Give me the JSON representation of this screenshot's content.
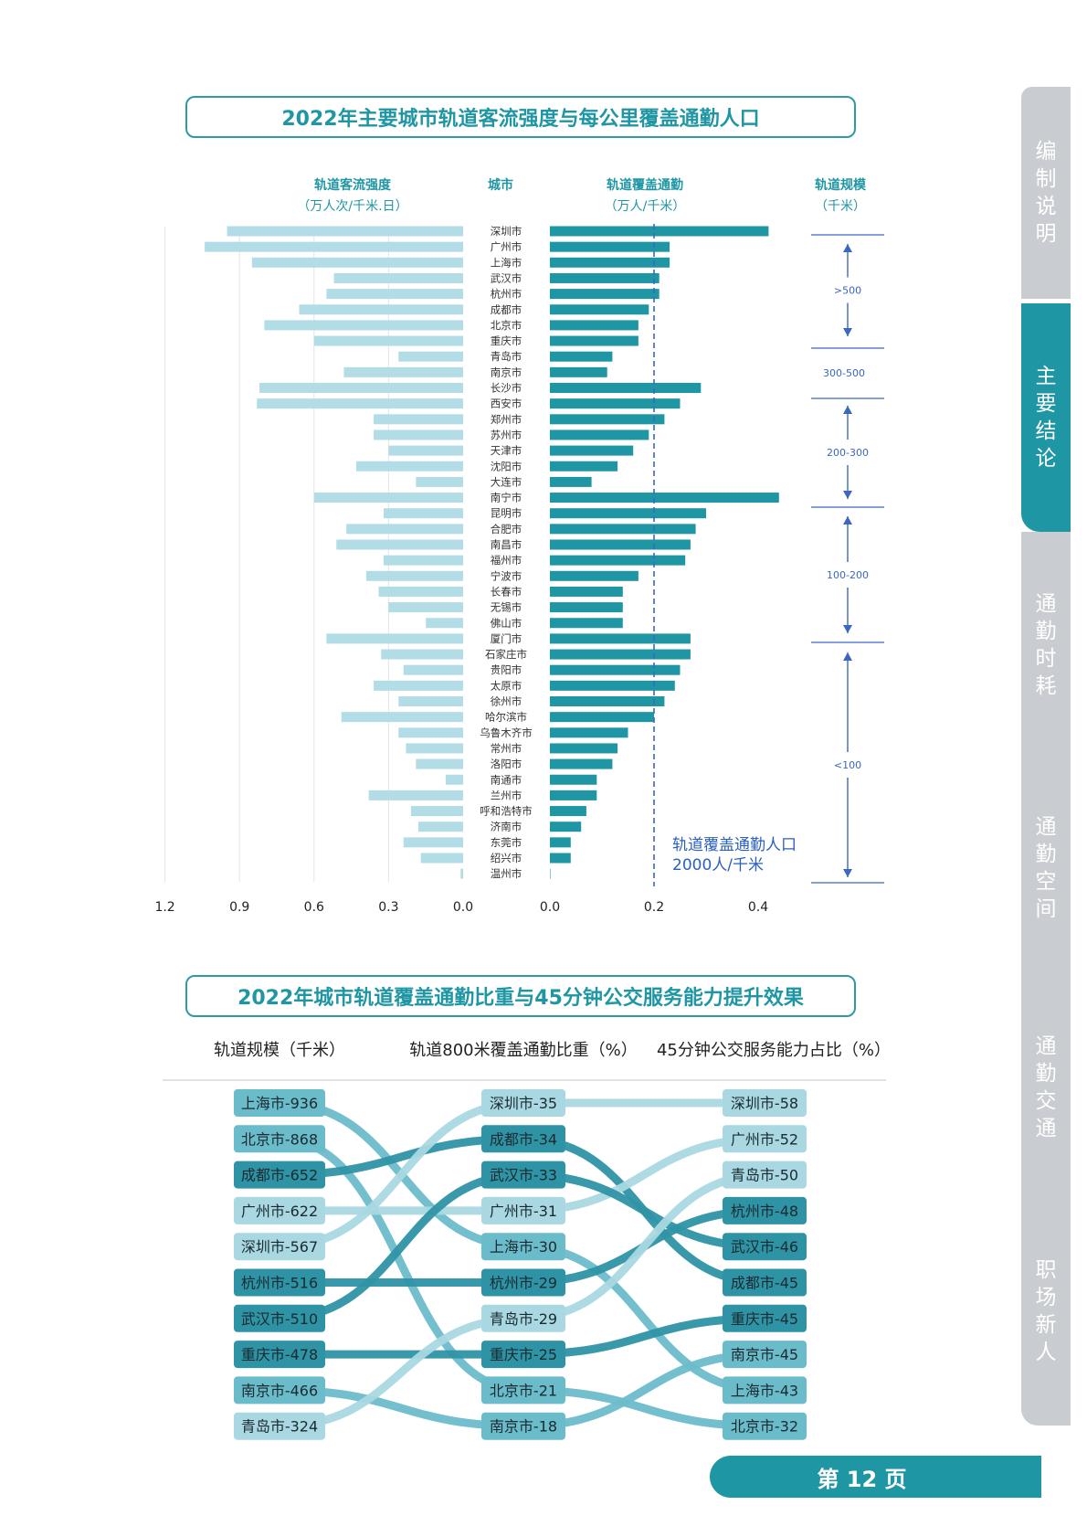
{
  "chart1": {
    "title": "2022年主要城市轨道客流强度与每公里覆盖通勤人口",
    "col_left": {
      "line1": "轨道客流强度",
      "line2": "（万人次/千米.日）"
    },
    "col_city": "城市",
    "col_right": {
      "line1": "轨道覆盖通勤",
      "line2": "（万人/千米）"
    },
    "col_scale": {
      "line1": "轨道规模",
      "line2": "（千米）"
    },
    "left_ticks": [
      "1.2",
      "0.9",
      "0.6",
      "0.3",
      "0.0"
    ],
    "right_ticks": [
      "0.0",
      "0.2",
      "0.4"
    ],
    "ref_label_line1": "轨道覆盖通勤人口",
    "ref_label_line2": "2000人/千米",
    "scale_groups": [
      {
        "label": ">500"
      },
      {
        "label": "300-500"
      },
      {
        "label": "200-300"
      },
      {
        "label": "100-200"
      },
      {
        "label": "<100"
      }
    ]
  },
  "chart_data": [
    {
      "type": "bar",
      "title": "2022年主要城市轨道客流强度与每公里覆盖通勤人口",
      "categories": [
        "深圳市",
        "广州市",
        "上海市",
        "武汉市",
        "杭州市",
        "成都市",
        "北京市",
        "重庆市",
        "青岛市",
        "南京市",
        "长沙市",
        "西安市",
        "郑州市",
        "苏州市",
        "天津市",
        "沈阳市",
        "大连市",
        "南宁市",
        "昆明市",
        "合肥市",
        "南昌市",
        "福州市",
        "宁波市",
        "长春市",
        "无锡市",
        "佛山市",
        "厦门市",
        "石家庄市",
        "贵阳市",
        "太原市",
        "徐州市",
        "哈尔滨市",
        "乌鲁木齐市",
        "常州市",
        "洛阳市",
        "南通市",
        "兰州市",
        "呼和浩特市",
        "济南市",
        "东莞市",
        "绍兴市",
        "温州市"
      ],
      "series": [
        {
          "name": "轨道客流强度（万人次/千米.日）",
          "values": [
            0.95,
            1.04,
            0.85,
            0.52,
            0.55,
            0.66,
            0.8,
            0.6,
            0.26,
            0.48,
            0.82,
            0.83,
            0.36,
            0.36,
            0.3,
            0.43,
            0.19,
            0.6,
            0.32,
            0.47,
            0.51,
            0.32,
            0.39,
            0.34,
            0.3,
            0.15,
            0.55,
            0.33,
            0.24,
            0.36,
            0.26,
            0.49,
            0.26,
            0.23,
            0.19,
            0.07,
            0.38,
            0.21,
            0.18,
            0.24,
            0.17,
            0.01
          ]
        },
        {
          "name": "轨道覆盖通勤（万人/千米）",
          "values": [
            0.42,
            0.23,
            0.23,
            0.21,
            0.21,
            0.19,
            0.17,
            0.17,
            0.12,
            0.11,
            0.29,
            0.25,
            0.22,
            0.19,
            0.16,
            0.13,
            0.08,
            0.44,
            0.3,
            0.28,
            0.27,
            0.26,
            0.17,
            0.14,
            0.14,
            0.14,
            0.27,
            0.27,
            0.25,
            0.24,
            0.22,
            0.2,
            0.15,
            0.13,
            0.12,
            0.09,
            0.09,
            0.07,
            0.06,
            0.04,
            0.04,
            0.0
          ]
        }
      ],
      "xlim_left": [
        0,
        1.2
      ],
      "xlim_right": [
        0,
        0.4
      ],
      "reference_line": 0.2
    },
    {
      "type": "slope",
      "title": "2022年城市轨道覆盖通勤比重与45分钟公交服务能力提升效果",
      "columns": [
        "轨道规模（千米）",
        "轨道800米覆盖通勤比重（%）",
        "45分钟公交服务能力占比（%）"
      ],
      "col1": [
        {
          "city": "上海市",
          "value": 936,
          "label": "上海市-936",
          "color": "#6bbccb"
        },
        {
          "city": "北京市",
          "value": 868,
          "label": "北京市-868",
          "color": "#6bbccb"
        },
        {
          "city": "成都市",
          "value": 652,
          "label": "成都市-652",
          "color": "#2e93a5"
        },
        {
          "city": "广州市",
          "value": 622,
          "label": "广州市-622",
          "color": "#a9d8e2"
        },
        {
          "city": "深圳市",
          "value": 567,
          "label": "深圳市-567",
          "color": "#a9d8e2"
        },
        {
          "city": "杭州市",
          "value": 516,
          "label": "杭州市-516",
          "color": "#2e93a5"
        },
        {
          "city": "武汉市",
          "value": 510,
          "label": "武汉市-510",
          "color": "#2e93a5"
        },
        {
          "city": "重庆市",
          "value": 478,
          "label": "重庆市-478",
          "color": "#2e93a5"
        },
        {
          "city": "南京市",
          "value": 466,
          "label": "南京市-466",
          "color": "#6bbccb"
        },
        {
          "city": "青岛市",
          "value": 324,
          "label": "青岛市-324",
          "color": "#a9d8e2"
        }
      ],
      "col2": [
        {
          "city": "深圳市",
          "value": 35,
          "label": "深圳市-35",
          "color": "#a9d8e2"
        },
        {
          "city": "成都市",
          "value": 34,
          "label": "成都市-34",
          "color": "#2e93a5"
        },
        {
          "city": "武汉市",
          "value": 33,
          "label": "武汉市-33",
          "color": "#2e93a5"
        },
        {
          "city": "广州市",
          "value": 31,
          "label": "广州市-31",
          "color": "#a9d8e2"
        },
        {
          "city": "上海市",
          "value": 30,
          "label": "上海市-30",
          "color": "#6bbccb"
        },
        {
          "city": "杭州市",
          "value": 29,
          "label": "杭州市-29",
          "color": "#2e93a5"
        },
        {
          "city": "青岛市",
          "value": 29,
          "label": "青岛市-29",
          "color": "#a9d8e2"
        },
        {
          "city": "重庆市",
          "value": 25,
          "label": "重庆市-25",
          "color": "#2e93a5"
        },
        {
          "city": "北京市",
          "value": 21,
          "label": "北京市-21",
          "color": "#6bbccb"
        },
        {
          "city": "南京市",
          "value": 18,
          "label": "南京市-18",
          "color": "#6bbccb"
        }
      ],
      "col3": [
        {
          "city": "深圳市",
          "value": 58,
          "label": "深圳市-58",
          "color": "#a9d8e2"
        },
        {
          "city": "广州市",
          "value": 52,
          "label": "广州市-52",
          "color": "#a9d8e2"
        },
        {
          "city": "青岛市",
          "value": 50,
          "label": "青岛市-50",
          "color": "#a9d8e2"
        },
        {
          "city": "杭州市",
          "value": 48,
          "label": "杭州市-48",
          "color": "#2e93a5"
        },
        {
          "city": "武汉市",
          "value": 46,
          "label": "武汉市-46",
          "color": "#2e93a5"
        },
        {
          "city": "成都市",
          "value": 45,
          "label": "成都市-45",
          "color": "#2e93a5"
        },
        {
          "city": "重庆市",
          "value": 45,
          "label": "重庆市-45",
          "color": "#2e93a5"
        },
        {
          "city": "南京市",
          "value": 45,
          "label": "南京市-45",
          "color": "#6bbccb"
        },
        {
          "city": "上海市",
          "value": 43,
          "label": "上海市-43",
          "color": "#6bbccb"
        },
        {
          "city": "北京市",
          "value": 32,
          "label": "北京市-32",
          "color": "#6bbccb"
        }
      ]
    }
  ],
  "sidebar": {
    "items": [
      {
        "label": "编制说明",
        "active": false
      },
      {
        "label": "主要结论",
        "active": true
      },
      {
        "label": "通勤时耗",
        "active": false
      },
      {
        "label": "通勤空间",
        "active": false
      },
      {
        "label": "通勤交通",
        "active": false
      },
      {
        "label": "职场新人",
        "active": false
      }
    ]
  },
  "page": {
    "label": "第 12 页"
  },
  "colors": {
    "accent": "#1f96a3",
    "light_bar": "#b2dde6",
    "dark_bar": "#1f96a3",
    "ref_line": "#3b66c4",
    "nav_off": "#c9ccd0"
  }
}
